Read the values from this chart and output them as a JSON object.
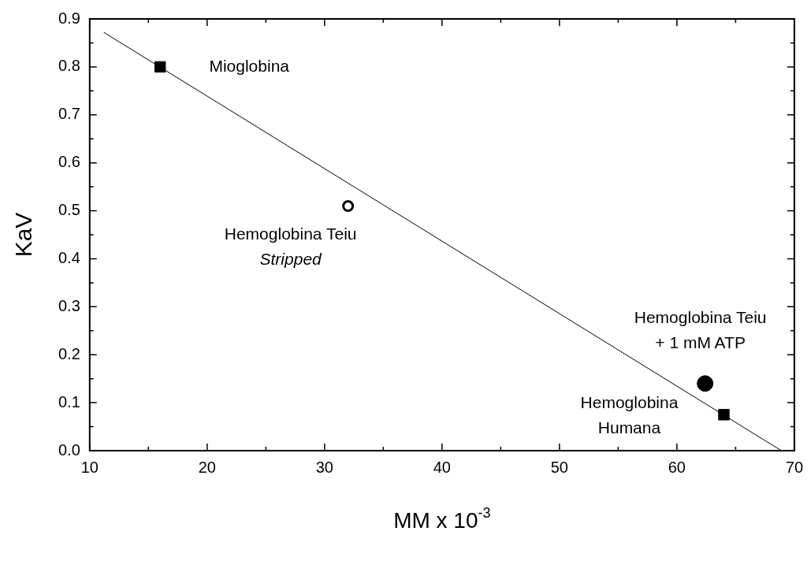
{
  "chart_data": {
    "type": "scatter",
    "xlabel": "MM x 10$^{-3}$",
    "ylabel": "KaV",
    "xlim": [
      10,
      70
    ],
    "xticks": [
      10,
      {
        "value": 15,
        "label": null
      },
      20,
      {
        "value": 25,
        "label": null
      },
      30,
      {
        "value": 35,
        "label": null
      },
      40,
      {
        "value": 45,
        "label": null
      },
      50,
      {
        "value": 55,
        "label": null
      },
      60,
      {
        "value": 65,
        "label": null
      },
      70
    ],
    "ylim": [
      0,
      0.9
    ],
    "yticks": [
      {
        "value": 0,
        "label": "0.0"
      },
      {
        "value": 0.05,
        "label": null
      },
      0.1,
      {
        "value": 0.15,
        "label": null
      },
      0.2,
      {
        "value": 0.25,
        "label": null
      },
      0.3,
      {
        "value": 0.35,
        "label": null
      },
      0.4,
      {
        "value": 0.45,
        "label": null
      },
      0.5,
      {
        "value": 0.55,
        "label": null
      },
      0.6,
      {
        "value": 0.65,
        "label": null
      },
      0.7,
      {
        "value": 0.75,
        "label": null
      },
      0.8,
      {
        "value": 0.85,
        "label": null
      },
      0.9
    ],
    "grid": false,
    "legend": false,
    "series": [
      {
        "type": "line",
        "color": "#000000",
        "x": [
          11.2,
          68.9
        ],
        "values": [
          0.872,
          0.0
        ],
        "marker": "none",
        "line_style": "solid"
      },
      {
        "color": "#000000",
        "x": [
          16,
          64
        ],
        "values": [
          0.8,
          0.075
        ],
        "marker": "square"
      },
      {
        "color": "#000000",
        "colors": [
          "#ffffff"
        ],
        "x": [
          32
        ],
        "values": [
          0.51
        ],
        "marker": "circle"
      },
      {
        "color": "#000000",
        "x": [
          62.4
        ],
        "values": [
          0.14
        ],
        "marker": "circle"
      }
    ],
    "annotations": [
      {
        "text": "Mioglobina",
        "x": 16,
        "y": 0.8
      },
      {
        "text": "Hemoglobina Teiu\nStripped",
        "x": 32,
        "y": 0.51
      },
      {
        "text": "Hemoglobina Teiu\n+ 1 mM ATP",
        "x": 62.4,
        "y": 0.14
      },
      {
        "text": "Hemoglobina\nHumana",
        "x": 64,
        "y": 0.075
      }
    ]
  }
}
